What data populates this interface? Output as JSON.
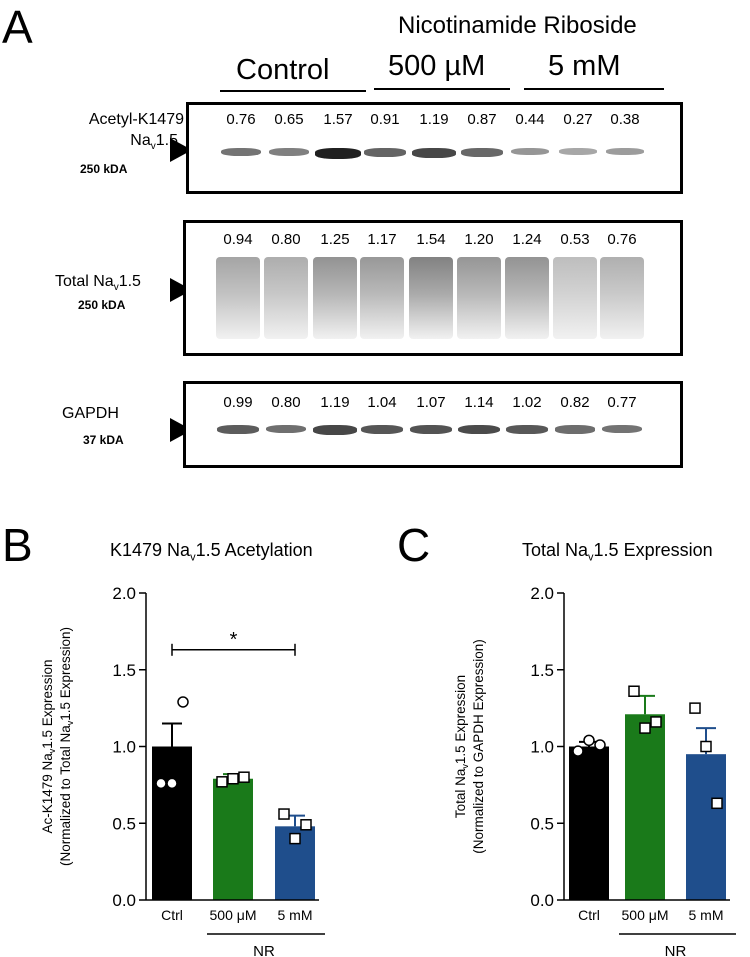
{
  "panel_a": {
    "letter": "A",
    "treatment_title": "Nicotinamide Riboside",
    "groups": [
      "Control",
      "500 µM",
      "5 mM"
    ],
    "blots": [
      {
        "label_line1": "Acetyl-K1479",
        "label_line2_base": "Na",
        "label_line2_sub": "v",
        "label_line2_rest": "1.5",
        "kda": "250 kDA",
        "quant": [
          "0.76",
          "0.65",
          "1.57",
          "0.91",
          "1.19",
          "0.87",
          "0.44",
          "0.27",
          "0.38"
        ]
      },
      {
        "label_line1_prefix": "Total Na",
        "label_line1_sub": "v",
        "label_line1_rest": "1.5",
        "kda": "250 kDA",
        "quant": [
          "0.94",
          "0.80",
          "1.25",
          "1.17",
          "1.54",
          "1.20",
          "1.24",
          "0.53",
          "0.76"
        ]
      },
      {
        "label_line1": "GAPDH",
        "kda": "37 kDA",
        "quant": [
          "0.99",
          "0.80",
          "1.19",
          "1.04",
          "1.07",
          "1.14",
          "1.02",
          "0.82",
          "0.77"
        ]
      }
    ]
  },
  "chart_data": [
    {
      "panel": "B",
      "type": "bar",
      "title_prefix": "K1479 Na",
      "title_sub": "v",
      "title_rest": "1.5 Acetylation",
      "ylabel_line1_prefix": "Ac-K1479 Na",
      "ylabel_line1_sub": "v",
      "ylabel_line1_rest": "1.5 Expression",
      "ylabel_line2_prefix": "(Normalized to Total Na",
      "ylabel_line2_sub": "v",
      "ylabel_line2_rest": "1.5  Expression)",
      "categories": [
        "Ctrl",
        "500 μM",
        "5 mM"
      ],
      "group_label": "NR",
      "values": [
        1.0,
        0.79,
        0.48
      ],
      "errors": [
        0.15,
        0.03,
        0.07
      ],
      "points": [
        [
          0.76,
          0.76,
          1.29
        ],
        [
          0.77,
          0.79,
          0.8
        ],
        [
          0.56,
          0.4,
          0.49
        ]
      ],
      "colors": [
        "#000000",
        "#1a7a1a",
        "#1f4e8c"
      ],
      "ylim": [
        0,
        2.0
      ],
      "yticks": [
        "0.0",
        "0.5",
        "1.0",
        "1.5",
        "2.0"
      ],
      "significance": "*"
    },
    {
      "panel": "C",
      "type": "bar",
      "title_prefix": "Total Na",
      "title_sub": "v",
      "title_rest": "1.5 Expression",
      "ylabel_line1_prefix": "Total Na",
      "ylabel_line1_sub": "v",
      "ylabel_line1_rest": "1.5 Expression",
      "ylabel_line2_prefix": "(Normalized to GAPDH Expression)",
      "ylabel_line2_sub": "",
      "ylabel_line2_rest": "",
      "categories": [
        "Ctrl",
        "500 μM",
        "5 mM"
      ],
      "group_label": "NR",
      "values": [
        1.0,
        1.21,
        0.95
      ],
      "errors": [
        0.03,
        0.12,
        0.17
      ],
      "points": [
        [
          0.97,
          1.04,
          1.01
        ],
        [
          1.36,
          1.12,
          1.16
        ],
        [
          1.25,
          1.0,
          0.63
        ]
      ],
      "colors": [
        "#000000",
        "#1a7a1a",
        "#1f4e8c"
      ],
      "ylim": [
        0,
        2.0
      ],
      "yticks": [
        "0.0",
        "0.5",
        "1.0",
        "1.5",
        "2.0"
      ],
      "significance": ""
    }
  ]
}
